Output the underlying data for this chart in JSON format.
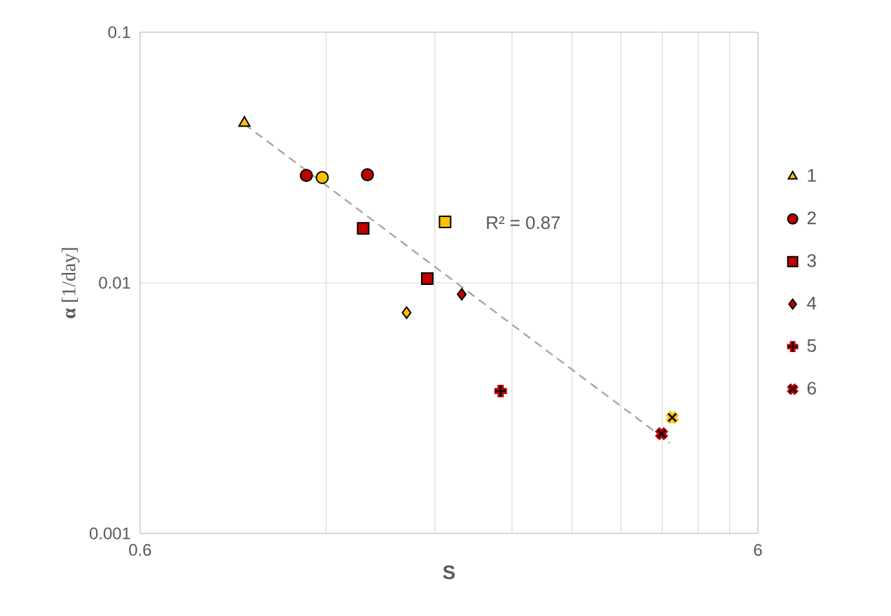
{
  "chart_data": {
    "type": "scatter",
    "xlabel": "S",
    "ylabel": "**α** [1/day]",
    "log": "xy",
    "grid": true,
    "legend": "right",
    "xlim": [
      0.6,
      6
    ],
    "ylim": [
      0.001,
      0.1
    ],
    "xticks": [
      0.6,
      {
        "value": 1.2,
        "label": null
      },
      {
        "value": 1.8,
        "label": null
      },
      {
        "value": 2.4,
        "label": null
      },
      {
        "value": 3.0,
        "label": null
      },
      {
        "value": 3.6,
        "label": null
      },
      {
        "value": 4.2,
        "label": null
      },
      {
        "value": 4.8,
        "label": null
      },
      {
        "value": 5.4,
        "label": null
      },
      6
    ],
    "yticks": [
      0.001,
      0.01,
      0.1
    ],
    "annotations": [
      "R² = 0.87"
    ],
    "series": [
      {
        "name": "1",
        "marker": "triangle",
        "color": "#000000",
        "x": [
          0.885
        ],
        "values": [
          0.0434
        ],
        "colors": [
          "#ffc000"
        ]
      },
      {
        "name": "2",
        "marker": "circle",
        "color": "#000000",
        "x": [
          1.115,
          1.183,
          1.4
        ],
        "values": [
          0.0268,
          0.0263,
          0.027
        ],
        "colors": [
          "#c00000",
          "#ffc000",
          "#c00000"
        ]
      },
      {
        "name": "3",
        "marker": "square",
        "color": "#000000",
        "x": [
          1.378,
          1.87,
          1.75
        ],
        "values": [
          0.0165,
          0.0175,
          0.0104
        ],
        "colors": [
          "#c00000",
          "#ffc000",
          "#c00000"
        ]
      },
      {
        "name": "4",
        "marker": "diamond",
        "color": "#000000",
        "x": [
          1.99,
          1.62
        ],
        "values": [
          0.009,
          0.0076
        ],
        "colors": [
          "#c00000",
          "#ffc000"
        ]
      },
      {
        "name": "5",
        "marker": "plus",
        "color": "#000000",
        "x": [
          2.3
        ],
        "values": [
          0.0037
        ],
        "colors": [
          "#c00000"
        ]
      },
      {
        "name": "6",
        "marker": "cross",
        "color": "#000000",
        "x": [
          4.19,
          4.36
        ],
        "values": [
          0.0025,
          0.0029
        ],
        "colors": [
          "#c00000",
          "#ffc000"
        ]
      },
      {
        "type": "line",
        "line_style": "dashed",
        "marker": "none",
        "color": "#a6a6a6",
        "x": [
          0.885,
          4.32
        ],
        "values": [
          0.043,
          0.0023
        ]
      }
    ]
  }
}
